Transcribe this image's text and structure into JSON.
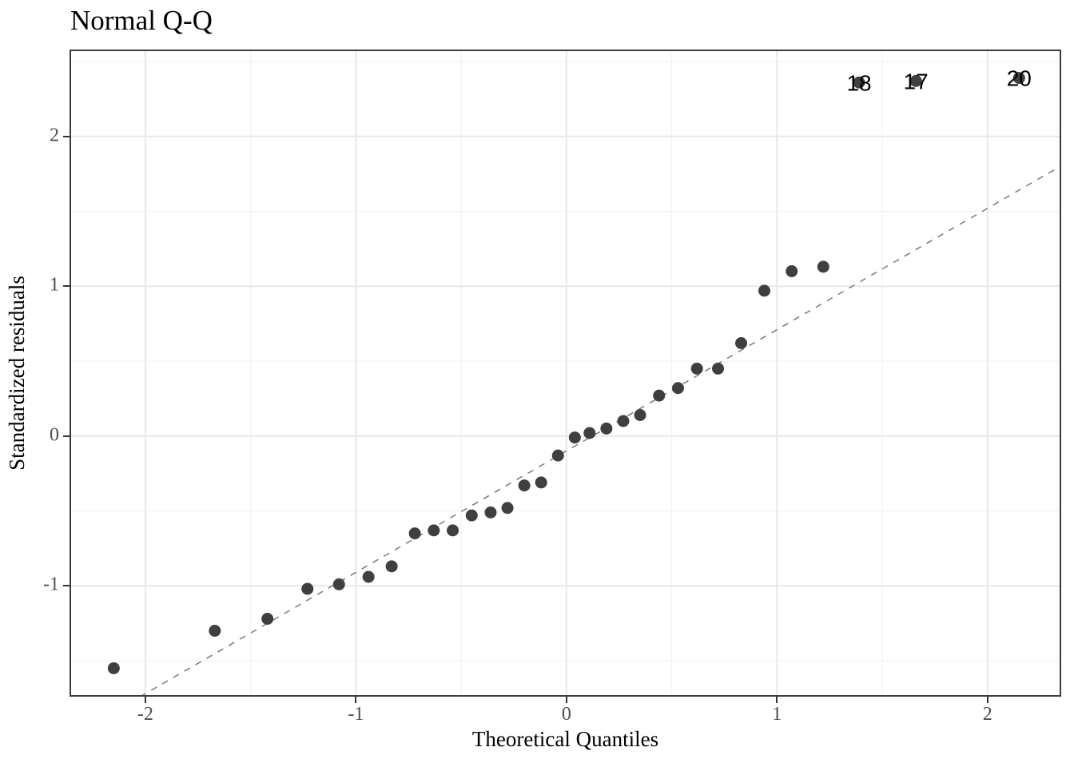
{
  "title": "Normal Q-Q",
  "axes": {
    "x": {
      "label": "Theoretical Quantiles",
      "tick_labels": [
        "-2",
        "-1",
        "0",
        "1",
        "2"
      ]
    },
    "y": {
      "label": "Standardized residuals",
      "tick_labels": [
        "-1",
        "0",
        "1",
        "2"
      ]
    }
  },
  "colors": {
    "point": "#3f3f3f",
    "outlier_label_text": "#000000",
    "grid_major": "#e8e8e8",
    "grid_minor": "#f3f3f3",
    "panel_border": "#3c3c3c",
    "tick_mark": "#333333",
    "tick_label": "#4d4d4d",
    "reference_line": "#7a7a7a",
    "title_text": "#000000",
    "background": "#ffffff"
  },
  "chart_data": {
    "type": "scatter",
    "title": "Normal Q-Q",
    "xlabel": "Theoretical Quantiles",
    "ylabel": "Standardized residuals",
    "xlim": [
      -2.36,
      2.35
    ],
    "ylim": [
      -1.74,
      2.58
    ],
    "x_ticks": [
      -2,
      -1,
      0,
      1,
      2
    ],
    "x_minor_ticks": [
      -1.5,
      -0.5,
      0.5,
      1.5
    ],
    "y_ticks": [
      -1,
      0,
      1,
      2
    ],
    "y_minor_ticks": [
      -1.5,
      -0.5,
      0.5,
      1.5,
      2.5
    ],
    "grid": "on",
    "legend": "none",
    "points": [
      [
        -2.15,
        -1.55
      ],
      [
        -1.67,
        -1.3
      ],
      [
        -1.42,
        -1.22
      ],
      [
        -1.23,
        -1.02
      ],
      [
        -1.08,
        -0.99
      ],
      [
        -0.94,
        -0.94
      ],
      [
        -0.83,
        -0.87
      ],
      [
        -0.72,
        -0.65
      ],
      [
        -0.63,
        -0.63
      ],
      [
        -0.54,
        -0.63
      ],
      [
        -0.45,
        -0.53
      ],
      [
        -0.36,
        -0.51
      ],
      [
        -0.28,
        -0.48
      ],
      [
        -0.2,
        -0.33
      ],
      [
        -0.12,
        -0.31
      ],
      [
        -0.04,
        -0.13
      ],
      [
        0.04,
        -0.01
      ],
      [
        0.11,
        0.02
      ],
      [
        0.19,
        0.05
      ],
      [
        0.27,
        0.1
      ],
      [
        0.35,
        0.14
      ],
      [
        0.44,
        0.27
      ],
      [
        0.53,
        0.32
      ],
      [
        0.62,
        0.45
      ],
      [
        0.72,
        0.45
      ],
      [
        0.83,
        0.62
      ],
      [
        0.94,
        0.97
      ],
      [
        1.07,
        1.1
      ],
      [
        1.22,
        1.13
      ]
    ],
    "labeled_points": [
      {
        "label": "18",
        "x": 1.39,
        "y": 2.36
      },
      {
        "label": "17",
        "x": 1.66,
        "y": 2.37
      },
      {
        "label": "20",
        "x": 2.15,
        "y": 2.39
      }
    ],
    "reference_line": {
      "style": "dashed",
      "slope": 0.81,
      "intercept": -0.1
    },
    "point_radius_px": 7.5,
    "outlier_label_font_px": 28
  }
}
